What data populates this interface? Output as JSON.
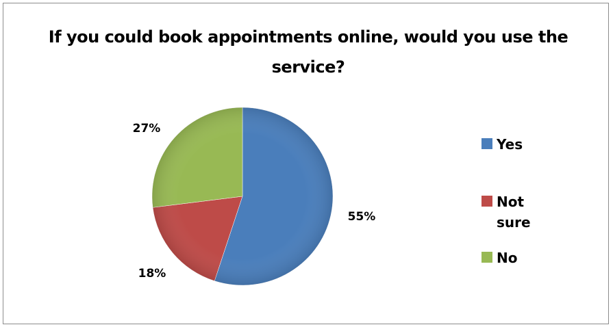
{
  "chart_data": {
    "type": "pie",
    "title": "If you could book appointments online, would you use the service?",
    "slices": [
      {
        "label": "Yes",
        "value": 55,
        "value_label": "55%",
        "color": "#4a7ebb"
      },
      {
        "label": "Not sure",
        "value": 18,
        "value_label": "18%",
        "color": "#be4b48"
      },
      {
        "label": "No",
        "value": 27,
        "value_label": "27%",
        "color": "#98b954"
      }
    ],
    "legend_position": "right"
  }
}
